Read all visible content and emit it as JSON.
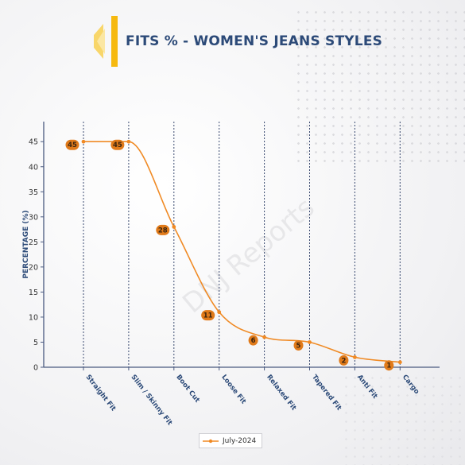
{
  "title": "FITS % - WOMEN'S JEANS STYLES",
  "watermark": "DNJ Reports",
  "colors": {
    "accent": "#f08a24",
    "title": "#2c4a78",
    "axis": "#4a5a80",
    "logo": "#f6b90f"
  },
  "legend": {
    "position": "bottom-center",
    "label": "July-2024"
  },
  "chart_data": {
    "type": "line",
    "categories": [
      "Straight Fit",
      "Slim / Skinny Fit",
      "Boot Cut",
      "Loose Fit",
      "Relaxed Fit",
      "Tapered Fit",
      "Anti Fit",
      "Cargo"
    ],
    "series": [
      {
        "name": "July-2024",
        "values": [
          45,
          45,
          28,
          11,
          6,
          5,
          2,
          1
        ]
      }
    ],
    "data_labels": [
      "45",
      "45",
      "28",
      "11",
      "6",
      "5",
      "2",
      "1"
    ],
    "xlabel": "",
    "ylabel": "PERCENTAGE (%)",
    "ylim": [
      0,
      49
    ],
    "yticks": [
      "0",
      "5",
      "10",
      "15",
      "20",
      "25",
      "30",
      "35",
      "40",
      "45"
    ],
    "grid": "vertical dotted lines at each category",
    "line_shape": "smoothed"
  }
}
